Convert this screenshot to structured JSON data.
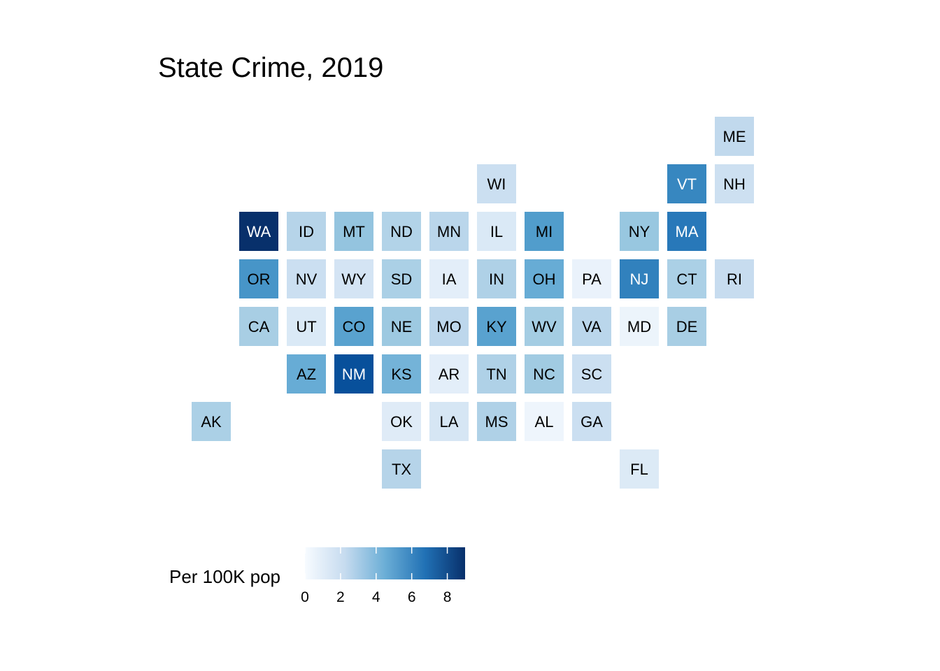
{
  "chart_data": {
    "type": "heatmap",
    "title": "State Crime, 2019",
    "color_scale": {
      "domain": [
        0,
        9
      ],
      "low_color": "#f7fbff",
      "mid_color": "#6baed6",
      "high_color": "#08306b"
    },
    "legend": {
      "title": "Per 100K pop",
      "ticks": [
        0,
        2,
        4,
        6,
        8
      ],
      "tick_labels": [
        "0",
        "2",
        "4",
        "6",
        "8"
      ],
      "placement": "bottom-left"
    },
    "states": [
      {
        "abbr": "ME",
        "col": 11,
        "row": 0,
        "value": 2.4
      },
      {
        "abbr": "WI",
        "col": 6,
        "row": 1,
        "value": 2.0
      },
      {
        "abbr": "VT",
        "col": 10,
        "row": 1,
        "value": 6.0
      },
      {
        "abbr": "NH",
        "col": 11,
        "row": 1,
        "value": 1.9
      },
      {
        "abbr": "WA",
        "col": 1,
        "row": 2,
        "value": 9.0
      },
      {
        "abbr": "ID",
        "col": 2,
        "row": 2,
        "value": 2.7
      },
      {
        "abbr": "MT",
        "col": 3,
        "row": 2,
        "value": 3.6
      },
      {
        "abbr": "ND",
        "col": 4,
        "row": 2,
        "value": 2.8
      },
      {
        "abbr": "MN",
        "col": 5,
        "row": 2,
        "value": 2.6
      },
      {
        "abbr": "IL",
        "col": 6,
        "row": 2,
        "value": 1.3
      },
      {
        "abbr": "MI",
        "col": 7,
        "row": 2,
        "value": 5.2
      },
      {
        "abbr": "NY",
        "col": 9,
        "row": 2,
        "value": 3.5
      },
      {
        "abbr": "MA",
        "col": 10,
        "row": 2,
        "value": 6.5
      },
      {
        "abbr": "OR",
        "col": 1,
        "row": 3,
        "value": 5.5
      },
      {
        "abbr": "NV",
        "col": 2,
        "row": 3,
        "value": 2.0
      },
      {
        "abbr": "WY",
        "col": 3,
        "row": 3,
        "value": 1.6
      },
      {
        "abbr": "SD",
        "col": 4,
        "row": 3,
        "value": 3.0
      },
      {
        "abbr": "IA",
        "col": 5,
        "row": 3,
        "value": 0.9
      },
      {
        "abbr": "IN",
        "col": 6,
        "row": 3,
        "value": 2.9
      },
      {
        "abbr": "OH",
        "col": 7,
        "row": 3,
        "value": 4.6
      },
      {
        "abbr": "PA",
        "col": 8,
        "row": 3,
        "value": 0.6
      },
      {
        "abbr": "NJ",
        "col": 9,
        "row": 3,
        "value": 6.2
      },
      {
        "abbr": "CT",
        "col": 10,
        "row": 3,
        "value": 3.0
      },
      {
        "abbr": "RI",
        "col": 11,
        "row": 3,
        "value": 2.2
      },
      {
        "abbr": "CA",
        "col": 1,
        "row": 4,
        "value": 3.1
      },
      {
        "abbr": "UT",
        "col": 2,
        "row": 4,
        "value": 1.3
      },
      {
        "abbr": "CO",
        "col": 3,
        "row": 4,
        "value": 5.0
      },
      {
        "abbr": "NE",
        "col": 4,
        "row": 4,
        "value": 3.4
      },
      {
        "abbr": "MO",
        "col": 5,
        "row": 4,
        "value": 2.5
      },
      {
        "abbr": "KY",
        "col": 6,
        "row": 4,
        "value": 5.0
      },
      {
        "abbr": "WV",
        "col": 7,
        "row": 4,
        "value": 3.2
      },
      {
        "abbr": "VA",
        "col": 8,
        "row": 4,
        "value": 2.6
      },
      {
        "abbr": "MD",
        "col": 9,
        "row": 4,
        "value": 0.5
      },
      {
        "abbr": "DE",
        "col": 10,
        "row": 4,
        "value": 3.1
      },
      {
        "abbr": "AZ",
        "col": 2,
        "row": 5,
        "value": 4.6
      },
      {
        "abbr": "NM",
        "col": 3,
        "row": 5,
        "value": 7.9
      },
      {
        "abbr": "KS",
        "col": 4,
        "row": 5,
        "value": 4.3
      },
      {
        "abbr": "AR",
        "col": 5,
        "row": 5,
        "value": 0.9
      },
      {
        "abbr": "TN",
        "col": 6,
        "row": 5,
        "value": 2.9
      },
      {
        "abbr": "NC",
        "col": 7,
        "row": 5,
        "value": 3.3
      },
      {
        "abbr": "SC",
        "col": 8,
        "row": 5,
        "value": 2.0
      },
      {
        "abbr": "AK",
        "col": 0,
        "row": 6,
        "value": 3.0
      },
      {
        "abbr": "OK",
        "col": 4,
        "row": 6,
        "value": 1.1
      },
      {
        "abbr": "LA",
        "col": 5,
        "row": 6,
        "value": 1.5
      },
      {
        "abbr": "MS",
        "col": 6,
        "row": 6,
        "value": 2.9
      },
      {
        "abbr": "AL",
        "col": 7,
        "row": 6,
        "value": 0.4
      },
      {
        "abbr": "GA",
        "col": 8,
        "row": 6,
        "value": 2.0
      },
      {
        "abbr": "TX",
        "col": 4,
        "row": 7,
        "value": 2.7
      },
      {
        "abbr": "FL",
        "col": 9,
        "row": 7,
        "value": 1.2
      }
    ]
  }
}
